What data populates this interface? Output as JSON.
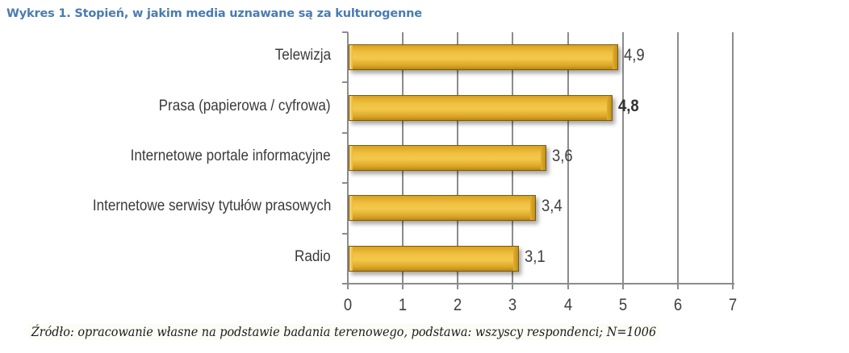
{
  "title": "Wykres 1. Stopień, w jakim media uznawane są za kulturogenne",
  "source": "Źródło: opracowanie własne na podstawie badania terenowego, podstawa: wszyscy respondenci; N=1006",
  "colors": {
    "bar": "#f0c040",
    "bar_border": "#7a5a10",
    "title": "#4a7bb0",
    "grid": "#8c8c8c"
  },
  "chart_data": {
    "type": "bar",
    "orientation": "horizontal",
    "title": "Wykres 1. Stopień, w jakim media uznawane są za kulturogenne",
    "categories": [
      "Telewizja",
      "Prasa (papierowa / cyfrowa)",
      "Internetowe portale informacyjne",
      "Internetowe serwisy tytułów prasowych",
      "Radio"
    ],
    "values": [
      4.9,
      4.8,
      3.6,
      3.4,
      3.1
    ],
    "value_labels": [
      "4,9",
      "4,8",
      "3,6",
      "3,4",
      "3,1"
    ],
    "bold_label_index": 1,
    "xlabel": "",
    "ylabel": "",
    "xlim": [
      0,
      7
    ],
    "xticks": [
      "0",
      "1",
      "2",
      "3",
      "4",
      "5",
      "6",
      "7"
    ],
    "grid": true,
    "legend": "none",
    "note": "Źródło: opracowanie własne na podstawie badania terenowego, podstawa: wszyscy respondenci; N=1006"
  }
}
